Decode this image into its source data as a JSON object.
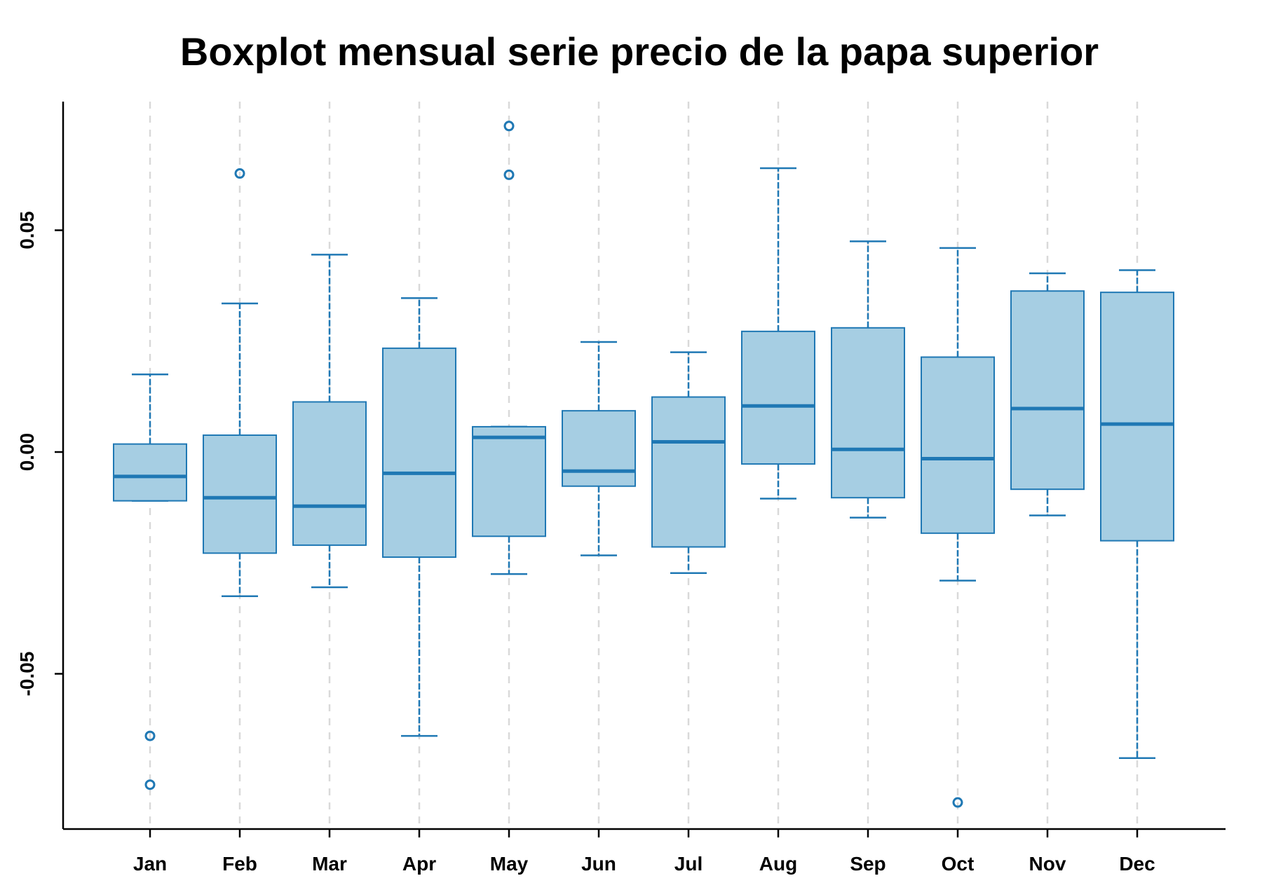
{
  "chart_data": {
    "type": "boxplot",
    "title": "Boxplot mensual serie precio de la papa superior",
    "xlabel": "",
    "ylabel": "",
    "ylim": [
      -0.085,
      0.079
    ],
    "yticks": [
      -0.05,
      0.0,
      0.05
    ],
    "ytick_labels": [
      "-0.05",
      "0.00",
      "0.05"
    ],
    "grid": "vertical-dashed",
    "colors": {
      "box_fill": "#a6cee3",
      "box_stroke": "#1f78b4",
      "grid": "#d9d9d9",
      "axis": "#000000"
    },
    "categories": [
      "Jan",
      "Feb",
      "Mar",
      "Apr",
      "May",
      "Jun",
      "Jul",
      "Aug",
      "Sep",
      "Oct",
      "Nov",
      "Dec"
    ],
    "boxes": [
      {
        "whislo": -0.011,
        "q1": -0.011,
        "med": -0.0055,
        "q3": 0.0018,
        "whishi": 0.0175,
        "fliers": [
          -0.064,
          -0.075
        ]
      },
      {
        "whislo": -0.0325,
        "q1": -0.0228,
        "med": -0.0103,
        "q3": 0.0038,
        "whishi": 0.0335,
        "fliers": [
          0.0628
        ]
      },
      {
        "whislo": -0.0305,
        "q1": -0.021,
        "med": -0.0122,
        "q3": 0.0113,
        "whishi": 0.0445,
        "fliers": []
      },
      {
        "whislo": -0.064,
        "q1": -0.0237,
        "med": -0.0048,
        "q3": 0.0234,
        "whishi": 0.0347,
        "fliers": []
      },
      {
        "whislo": -0.0275,
        "q1": -0.019,
        "med": 0.0033,
        "q3": 0.0057,
        "whishi": 0.0057,
        "fliers": [
          0.0735,
          0.0625
        ]
      },
      {
        "whislo": -0.0233,
        "q1": -0.0077,
        "med": -0.0043,
        "q3": 0.0093,
        "whishi": 0.0248,
        "fliers": []
      },
      {
        "whislo": -0.0273,
        "q1": -0.0214,
        "med": 0.0023,
        "q3": 0.0124,
        "whishi": 0.0225,
        "fliers": []
      },
      {
        "whislo": -0.0105,
        "q1": -0.0027,
        "med": 0.0104,
        "q3": 0.0272,
        "whishi": 0.064,
        "fliers": []
      },
      {
        "whislo": -0.0148,
        "q1": -0.0103,
        "med": 0.0006,
        "q3": 0.028,
        "whishi": 0.0475,
        "fliers": []
      },
      {
        "whislo": -0.029,
        "q1": -0.0183,
        "med": -0.0015,
        "q3": 0.0214,
        "whishi": 0.046,
        "fliers": [
          -0.079
        ]
      },
      {
        "whislo": -0.0143,
        "q1": -0.0084,
        "med": 0.0098,
        "q3": 0.0363,
        "whishi": 0.0403,
        "fliers": []
      },
      {
        "whislo": -0.069,
        "q1": -0.02,
        "med": 0.0063,
        "q3": 0.036,
        "whishi": 0.041,
        "fliers": []
      }
    ]
  }
}
